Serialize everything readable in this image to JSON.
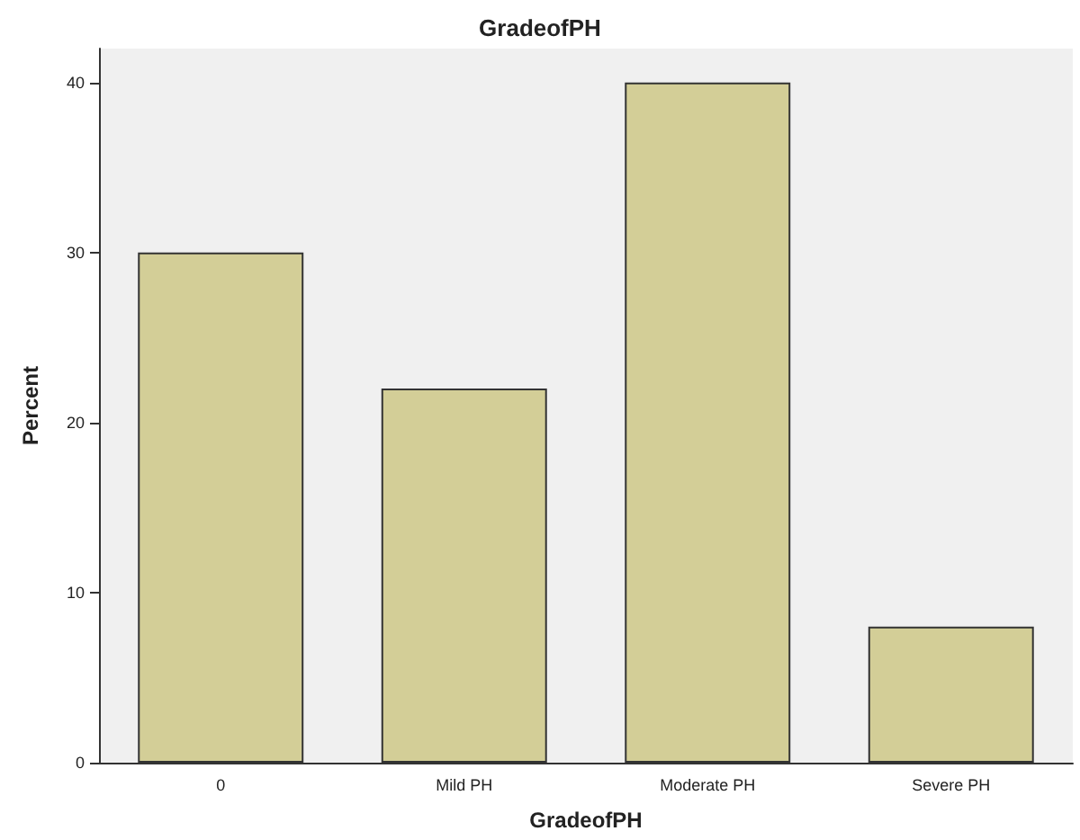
{
  "chart_data": {
    "type": "bar",
    "title": "GradeofPH",
    "xlabel": "GradeofPH",
    "ylabel": "Percent",
    "categories": [
      "0",
      "Mild PH",
      "Moderate PH",
      "Severe PH"
    ],
    "values": [
      30,
      22,
      40,
      8
    ],
    "color": "#d3ce97",
    "ylim": [
      0,
      42
    ],
    "yticks": [
      0,
      10,
      20,
      30,
      40
    ],
    "grid": false
  }
}
